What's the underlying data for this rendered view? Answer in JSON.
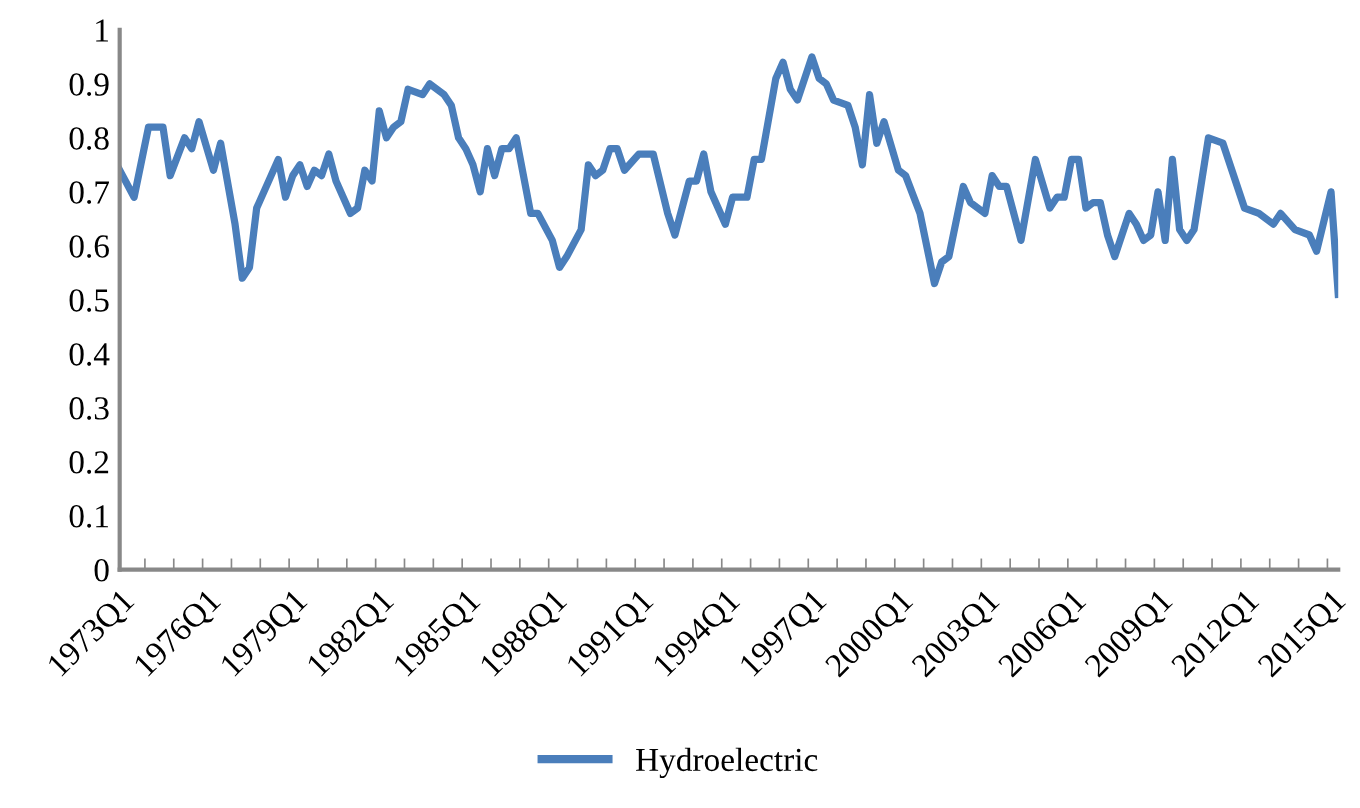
{
  "chart_data": {
    "type": "line",
    "categories": [
      "1973Q1",
      null,
      null,
      null,
      null,
      null,
      null,
      null,
      null,
      null,
      null,
      null,
      "1976Q1",
      null,
      null,
      null,
      null,
      null,
      null,
      null,
      null,
      null,
      null,
      null,
      "1979Q1",
      null,
      null,
      null,
      null,
      null,
      null,
      null,
      null,
      null,
      null,
      null,
      "1982Q1",
      null,
      null,
      null,
      null,
      null,
      null,
      null,
      null,
      null,
      null,
      null,
      "1985Q1",
      null,
      null,
      null,
      null,
      null,
      null,
      null,
      null,
      null,
      null,
      null,
      "1988Q1",
      null,
      null,
      null,
      null,
      null,
      null,
      null,
      null,
      null,
      null,
      null,
      "1991Q1",
      null,
      null,
      null,
      null,
      null,
      null,
      null,
      null,
      null,
      null,
      null,
      "1994Q1",
      null,
      null,
      null,
      null,
      null,
      null,
      null,
      null,
      null,
      null,
      null,
      "1997Q1",
      null,
      null,
      null,
      null,
      null,
      null,
      null,
      null,
      null,
      null,
      null,
      "2000Q1",
      null,
      null,
      null,
      null,
      null,
      null,
      null,
      null,
      null,
      null,
      null,
      "2003Q1",
      null,
      null,
      null,
      null,
      null,
      null,
      null,
      null,
      null,
      null,
      null,
      "2006Q1",
      null,
      null,
      null,
      null,
      null,
      null,
      null,
      null,
      null,
      null,
      null,
      "2009Q1",
      null,
      null,
      null,
      null,
      null,
      null,
      null,
      null,
      null,
      null,
      null,
      "2012Q1",
      null,
      null,
      null,
      null,
      null,
      null,
      null,
      null,
      null,
      null,
      null,
      "2015Q1",
      null
    ],
    "series": [
      {
        "name": "Hydroelectric",
        "color": "#4a7ebb",
        "values": [
          0.74,
          null,
          0.69,
          null,
          0.82,
          null,
          0.82,
          0.73,
          null,
          0.8,
          0.78,
          0.83,
          null,
          0.74,
          0.79,
          null,
          0.64,
          0.54,
          0.56,
          0.67,
          null,
          0.73,
          0.76,
          0.69,
          0.73,
          0.75,
          0.71,
          0.74,
          0.73,
          0.77,
          0.72,
          null,
          0.66,
          0.67,
          0.74,
          0.72,
          0.85,
          0.8,
          0.82,
          0.83,
          0.89,
          null,
          0.88,
          0.9,
          null,
          0.88,
          0.86,
          0.8,
          0.78,
          0.75,
          0.7,
          0.78,
          0.73,
          0.78,
          0.78,
          0.8,
          null,
          0.66,
          0.66,
          null,
          0.61,
          0.56,
          0.58,
          null,
          0.63,
          0.75,
          0.73,
          0.74,
          0.78,
          0.78,
          0.74,
          null,
          0.77,
          null,
          0.77,
          null,
          0.66,
          0.62,
          null,
          0.72,
          0.72,
          0.77,
          0.7,
          null,
          0.64,
          0.69,
          null,
          0.69,
          0.76,
          0.76,
          null,
          0.91,
          0.94,
          0.89,
          0.87,
          null,
          0.95,
          0.91,
          0.9,
          0.87,
          null,
          0.86,
          0.82,
          0.75,
          0.88,
          0.79,
          0.83,
          null,
          0.74,
          0.73,
          null,
          0.66,
          null,
          0.53,
          0.57,
          0.58,
          null,
          0.71,
          0.68,
          null,
          0.66,
          0.73,
          0.71,
          0.71,
          null,
          0.61,
          null,
          0.76,
          null,
          0.67,
          0.69,
          0.69,
          0.76,
          0.76,
          0.67,
          0.68,
          0.68,
          0.62,
          0.58,
          null,
          0.66,
          0.64,
          0.61,
          0.62,
          0.7,
          0.61,
          0.76,
          0.63,
          0.61,
          0.63,
          null,
          0.8,
          null,
          0.79,
          null,
          null,
          0.67,
          null,
          0.66,
          null,
          0.64,
          0.66,
          null,
          0.63,
          null,
          0.62,
          0.59,
          null,
          0.7,
          0.51
        ]
      }
    ],
    "ylim": [
      0,
      1
    ],
    "yticks": [
      0,
      0.1,
      0.2,
      0.3,
      0.4,
      0.5,
      0.6,
      0.7,
      0.8,
      0.9,
      1
    ],
    "grid": false,
    "legend": "bottom",
    "marker": "none",
    "line_style": "solid"
  }
}
